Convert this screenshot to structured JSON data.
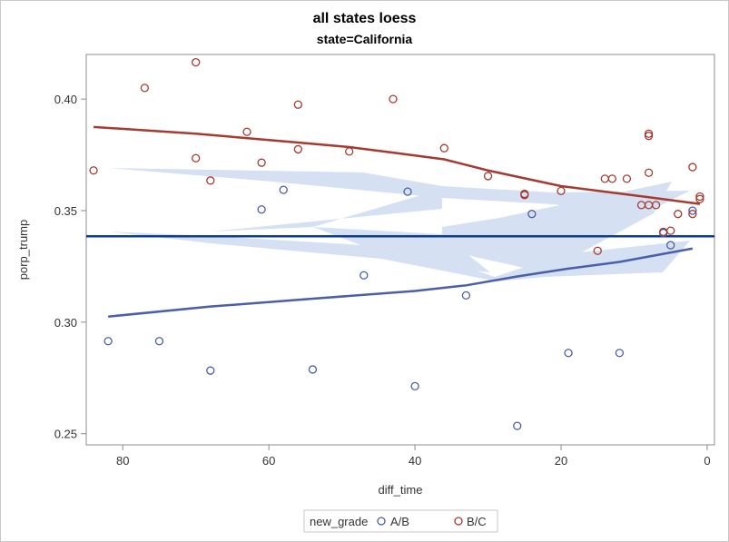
{
  "chart_data": {
    "type": "scatter",
    "title": "all states loess",
    "subtitle": "state=California",
    "xlabel": "diff_time",
    "ylabel": "porp_trump",
    "xlim": [
      85,
      -1
    ],
    "ylim": [
      0.245,
      0.42
    ],
    "x_ticks": [
      80,
      60,
      40,
      20,
      0
    ],
    "y_ticks": [
      0.25,
      0.3,
      0.35,
      0.4
    ],
    "x_tick_labels": [
      "80",
      "60",
      "40",
      "20",
      "0"
    ],
    "y_tick_labels": [
      "0.25",
      "0.30",
      "0.35",
      "0.40"
    ],
    "reference_line": {
      "y": 0.3385,
      "color": "#0c3c93"
    },
    "legend": {
      "title": "new_grade",
      "position": "bottom-center",
      "entries": [
        "A/B",
        "B/C"
      ]
    },
    "series": [
      {
        "name": "A/B",
        "color": "#4b5ea8",
        "points": [
          {
            "x": 82,
            "y": 0.2915
          },
          {
            "x": 75,
            "y": 0.2915
          },
          {
            "x": 68,
            "y": 0.2783
          },
          {
            "x": 61,
            "y": 0.3505
          },
          {
            "x": 58,
            "y": 0.3593
          },
          {
            "x": 54,
            "y": 0.2788
          },
          {
            "x": 47,
            "y": 0.321
          },
          {
            "x": 41,
            "y": 0.3585
          },
          {
            "x": 40,
            "y": 0.2713
          },
          {
            "x": 33,
            "y": 0.312
          },
          {
            "x": 26,
            "y": 0.2535
          },
          {
            "x": 24,
            "y": 0.3485
          },
          {
            "x": 19,
            "y": 0.2862
          },
          {
            "x": 12,
            "y": 0.2862
          },
          {
            "x": 6,
            "y": 0.34
          },
          {
            "x": 5,
            "y": 0.3345
          },
          {
            "x": 2,
            "y": 0.35
          }
        ],
        "loess": [
          {
            "x": 82,
            "y": 0.3025
          },
          {
            "x": 68,
            "y": 0.307
          },
          {
            "x": 54,
            "y": 0.3105
          },
          {
            "x": 40,
            "y": 0.314
          },
          {
            "x": 33,
            "y": 0.3165
          },
          {
            "x": 26,
            "y": 0.3205
          },
          {
            "x": 19,
            "y": 0.324
          },
          {
            "x": 12,
            "y": 0.327
          },
          {
            "x": 2,
            "y": 0.333
          }
        ]
      },
      {
        "name": "B/C",
        "color": "#a53a30",
        "points": [
          {
            "x": 84,
            "y": 0.368
          },
          {
            "x": 77,
            "y": 0.405
          },
          {
            "x": 70,
            "y": 0.4165
          },
          {
            "x": 70,
            "y": 0.3735
          },
          {
            "x": 68,
            "y": 0.3635
          },
          {
            "x": 63,
            "y": 0.3853
          },
          {
            "x": 61,
            "y": 0.3715
          },
          {
            "x": 56,
            "y": 0.3975
          },
          {
            "x": 56,
            "y": 0.3775
          },
          {
            "x": 49,
            "y": 0.3765
          },
          {
            "x": 43,
            "y": 0.4
          },
          {
            "x": 36,
            "y": 0.378
          },
          {
            "x": 30,
            "y": 0.3655
          },
          {
            "x": 25,
            "y": 0.3575
          },
          {
            "x": 25,
            "y": 0.357
          },
          {
            "x": 20,
            "y": 0.3588
          },
          {
            "x": 15,
            "y": 0.332
          },
          {
            "x": 14,
            "y": 0.3643
          },
          {
            "x": 13,
            "y": 0.3643
          },
          {
            "x": 11,
            "y": 0.3643
          },
          {
            "x": 9,
            "y": 0.3525
          },
          {
            "x": 8,
            "y": 0.3845
          },
          {
            "x": 8,
            "y": 0.3835
          },
          {
            "x": 8,
            "y": 0.367
          },
          {
            "x": 8,
            "y": 0.3525
          },
          {
            "x": 7,
            "y": 0.3525
          },
          {
            "x": 6,
            "y": 0.3405
          },
          {
            "x": 5,
            "y": 0.341
          },
          {
            "x": 4,
            "y": 0.3485
          },
          {
            "x": 2,
            "y": 0.3695
          },
          {
            "x": 2,
            "y": 0.3485
          },
          {
            "x": 1,
            "y": 0.3563
          },
          {
            "x": 1,
            "y": 0.3552
          }
        ],
        "loess": [
          {
            "x": 84,
            "y": 0.3875
          },
          {
            "x": 70,
            "y": 0.3845
          },
          {
            "x": 56,
            "y": 0.3805
          },
          {
            "x": 49,
            "y": 0.3785
          },
          {
            "x": 43,
            "y": 0.376
          },
          {
            "x": 36,
            "y": 0.373
          },
          {
            "x": 30,
            "y": 0.368
          },
          {
            "x": 25,
            "y": 0.3645
          },
          {
            "x": 20,
            "y": 0.361
          },
          {
            "x": 14,
            "y": 0.3585
          },
          {
            "x": 8,
            "y": 0.356
          },
          {
            "x": 1,
            "y": 0.353
          }
        ]
      }
    ]
  }
}
